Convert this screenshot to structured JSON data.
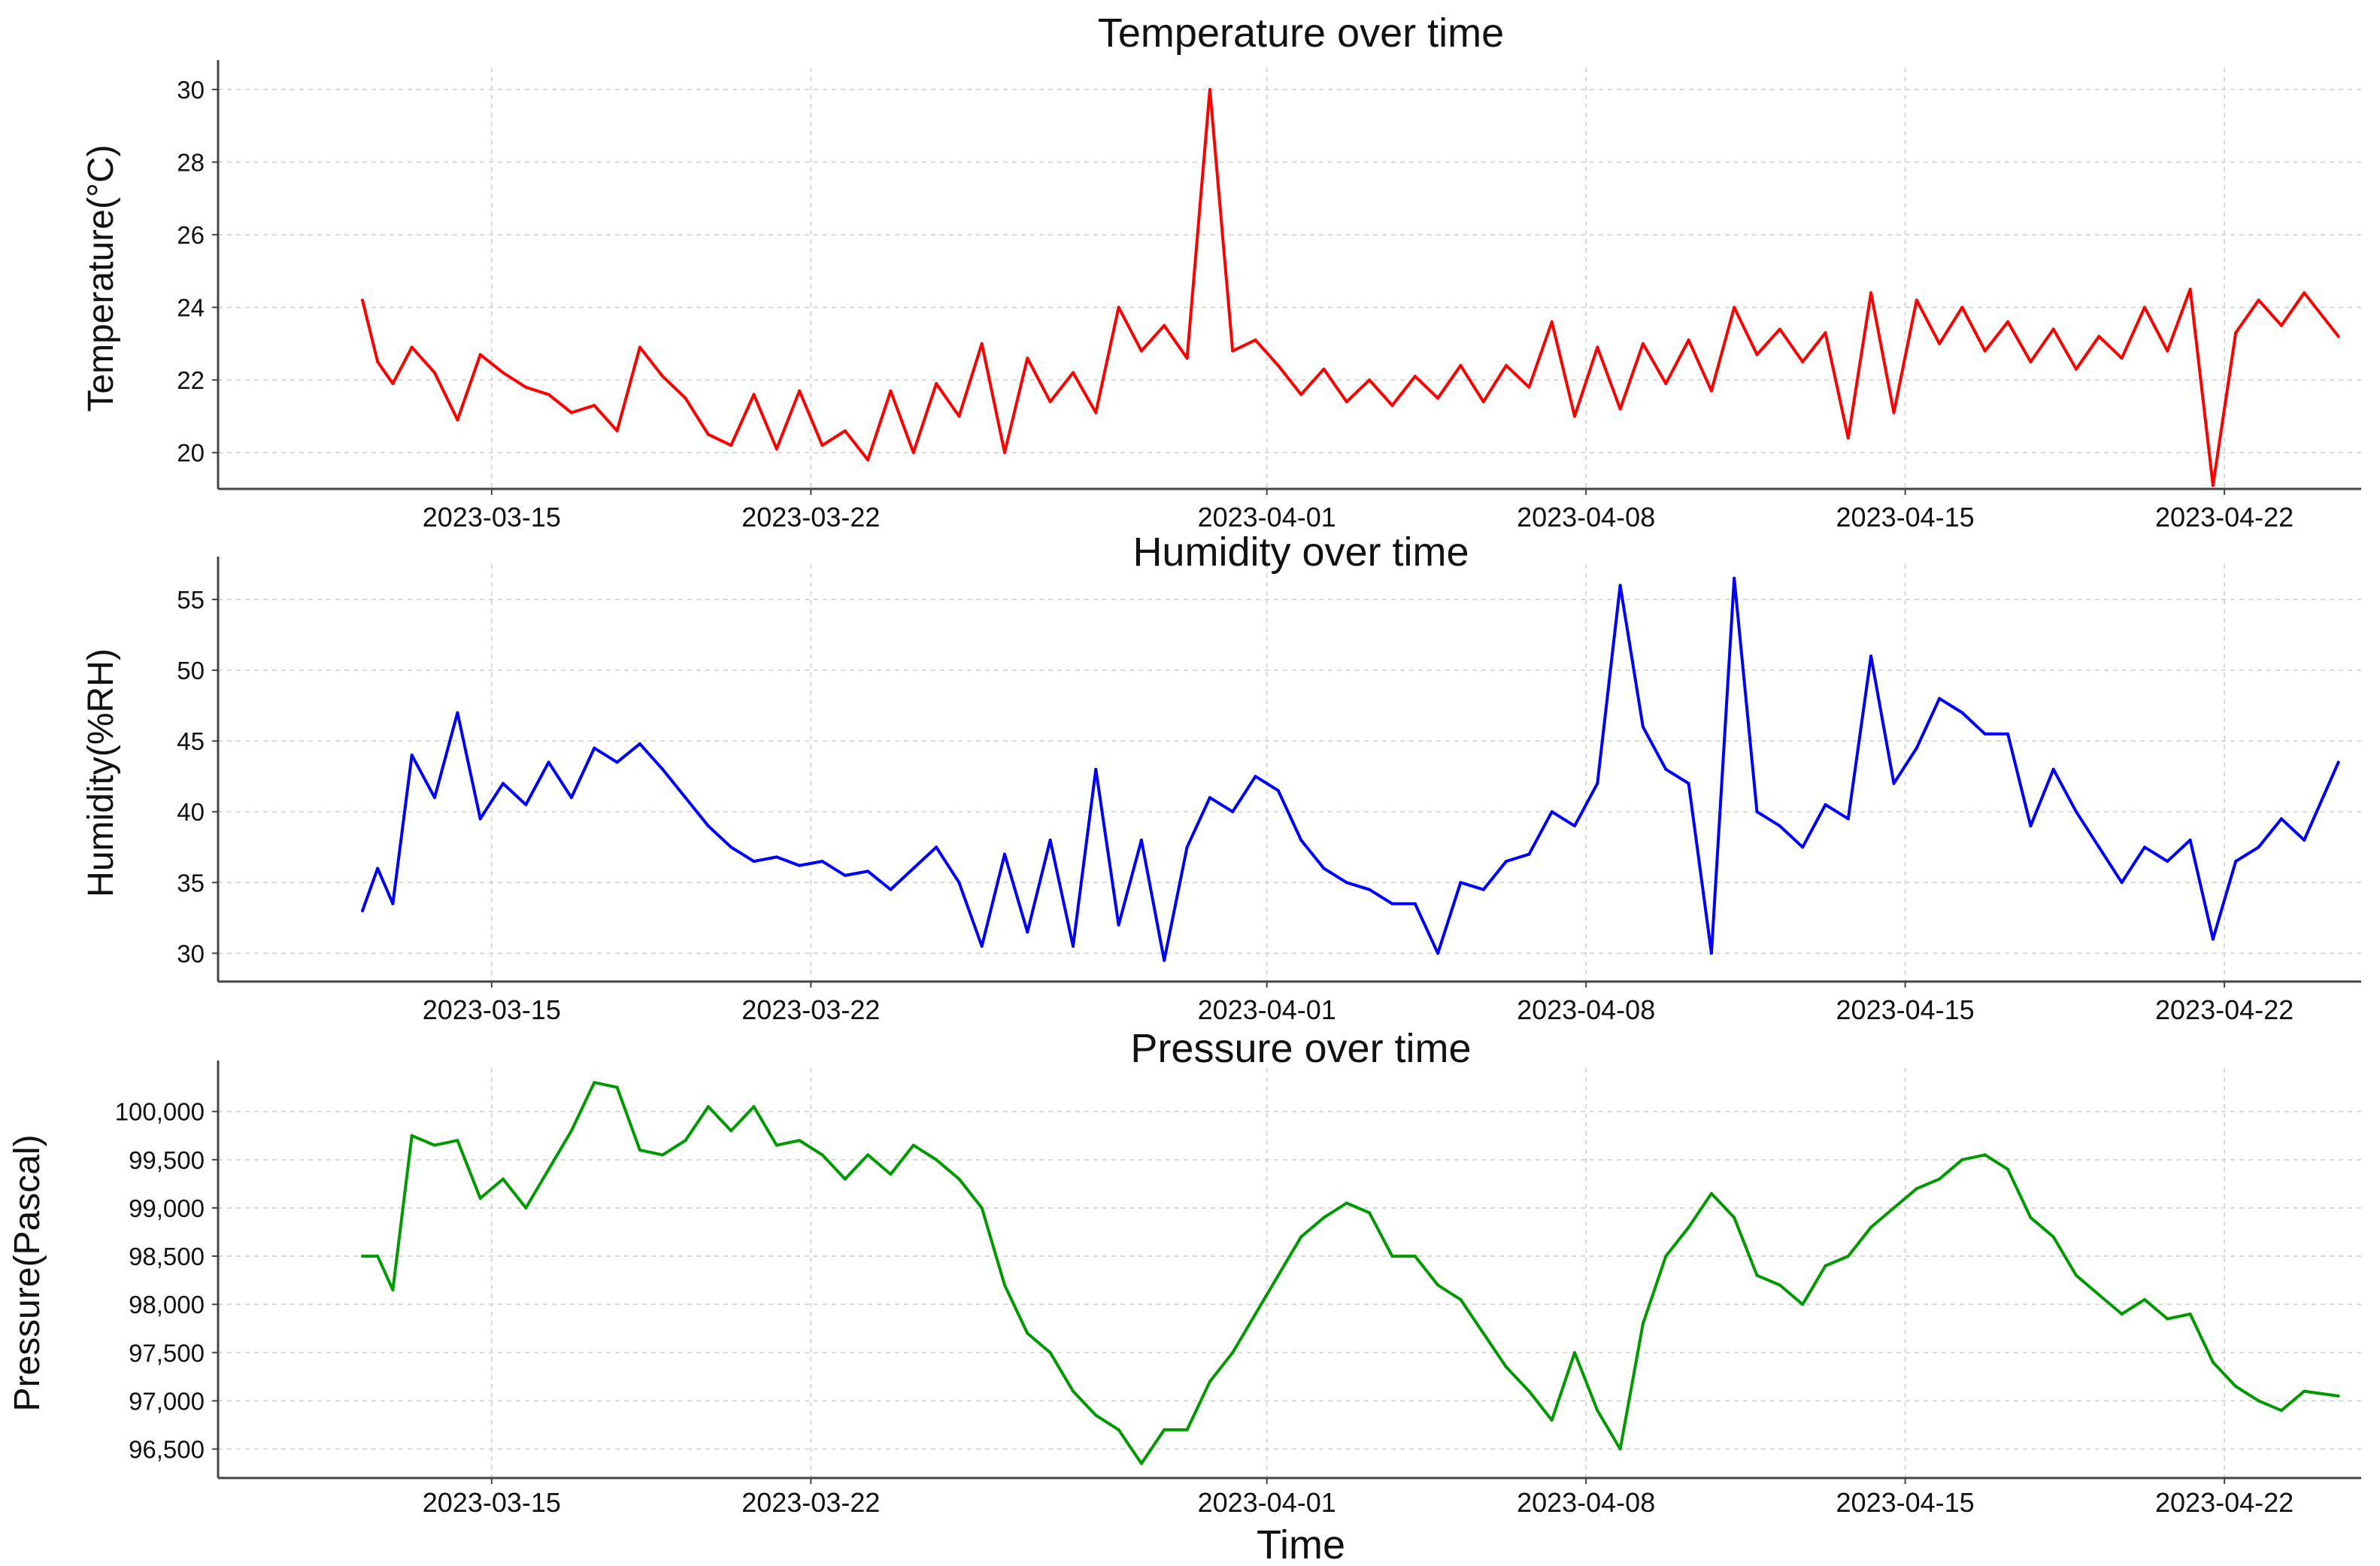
{
  "chart_data": [
    {
      "type": "line",
      "title": "Temperature over time",
      "ylabel": "Temperature(°C)",
      "xlabel": "",
      "xlim": [
        "2023-03-09",
        "2023-04-25"
      ],
      "ylim": [
        19,
        30.6
      ],
      "yticks": [
        20,
        22,
        24,
        26,
        28,
        30
      ],
      "ytick_labels": [
        "20",
        "22",
        "24",
        "26",
        "28",
        "30"
      ],
      "xticks": [
        "2023-03-15",
        "2023-03-22",
        "2023-04-01",
        "2023-04-08",
        "2023-04-15",
        "2023-04-22"
      ],
      "grid": true,
      "color": "#ff0000",
      "series": [
        {
          "x": [
            "2023-03-12",
            "2023-03-12",
            "2023-03-12",
            "2023-03-13",
            "2023-03-13",
            "2023-03-14",
            "2023-03-14",
            "2023-03-15",
            "2023-03-15",
            "2023-03-16",
            "2023-03-16",
            "2023-03-17",
            "2023-03-17",
            "2023-03-18",
            "2023-03-18",
            "2023-03-19",
            "2023-03-19",
            "2023-03-20",
            "2023-03-20",
            "2023-03-21",
            "2023-03-21",
            "2023-03-22",
            "2023-03-22",
            "2023-03-23",
            "2023-03-23",
            "2023-03-24",
            "2023-03-24",
            "2023-03-25",
            "2023-03-25",
            "2023-03-26",
            "2023-03-26",
            "2023-03-27",
            "2023-03-27",
            "2023-03-28",
            "2023-03-28",
            "2023-03-29",
            "2023-03-29",
            "2023-03-30",
            "2023-03-30",
            "2023-03-31",
            "2023-03-31",
            "2023-04-01",
            "2023-04-01",
            "2023-04-02",
            "2023-04-02",
            "2023-04-03",
            "2023-04-03",
            "2023-04-04",
            "2023-04-04",
            "2023-04-05",
            "2023-04-05",
            "2023-04-06",
            "2023-04-06",
            "2023-04-07",
            "2023-04-07",
            "2023-04-08",
            "2023-04-08",
            "2023-04-09",
            "2023-04-09",
            "2023-04-10",
            "2023-04-10",
            "2023-04-11",
            "2023-04-11",
            "2023-04-12",
            "2023-04-12",
            "2023-04-13",
            "2023-04-13",
            "2023-04-14",
            "2023-04-14",
            "2023-04-15",
            "2023-04-15",
            "2023-04-16",
            "2023-04-16",
            "2023-04-17",
            "2023-04-17",
            "2023-04-18",
            "2023-04-18",
            "2023-04-19",
            "2023-04-19",
            "2023-04-20",
            "2023-04-20",
            "2023-04-21",
            "2023-04-21",
            "2023-04-22",
            "2023-04-22",
            "2023-04-23",
            "2023-04-23",
            "2023-04-24"
          ],
          "y": [
            24.2,
            22.5,
            21.9,
            22.9,
            22.2,
            20.9,
            22.7,
            22.2,
            21.8,
            21.6,
            21.1,
            21.3,
            20.6,
            22.9,
            22.1,
            21.5,
            20.5,
            20.2,
            21.6,
            20.1,
            21.7,
            20.2,
            20.6,
            19.8,
            21.7,
            20.0,
            21.9,
            21.0,
            23.0,
            20.0,
            22.6,
            21.4,
            22.2,
            21.1,
            24.0,
            22.8,
            23.5,
            22.6,
            30.0,
            22.8,
            23.1,
            22.4,
            21.6,
            22.3,
            21.4,
            22.0,
            21.3,
            22.1,
            21.5,
            22.4,
            21.4,
            22.4,
            21.8,
            23.6,
            21.0,
            22.9,
            21.2,
            23.0,
            21.9,
            23.1,
            21.7,
            24.0,
            22.7,
            23.4,
            22.5,
            23.3,
            20.4,
            24.4,
            21.1,
            24.2,
            23.0,
            24.0,
            22.8,
            23.6,
            22.5,
            23.4,
            22.3,
            23.2,
            22.6,
            24.0,
            22.8,
            24.5,
            19.1,
            23.3,
            24.2,
            23.5,
            24.4,
            23.2
          ],
          "color": "#ff0000"
        }
      ]
    },
    {
      "type": "line",
      "title": "Humidity over time",
      "ylabel": "Humidity(%RH)",
      "xlabel": "",
      "xlim": [
        "2023-03-09",
        "2023-04-25"
      ],
      "ylim": [
        28,
        57.5
      ],
      "yticks": [
        30,
        35,
        40,
        45,
        50,
        55
      ],
      "ytick_labels": [
        "30",
        "35",
        "40",
        "45",
        "50",
        "55"
      ],
      "xticks": [
        "2023-03-15",
        "2023-03-22",
        "2023-04-01",
        "2023-04-08",
        "2023-04-15",
        "2023-04-22"
      ],
      "grid": true,
      "color": "#0000ff",
      "series": [
        {
          "x": [
            "2023-03-12",
            "2023-03-12",
            "2023-03-12",
            "2023-03-13",
            "2023-03-13",
            "2023-03-14",
            "2023-03-14",
            "2023-03-15",
            "2023-03-15",
            "2023-03-16",
            "2023-03-16",
            "2023-03-17",
            "2023-03-17",
            "2023-03-18",
            "2023-03-18",
            "2023-03-19",
            "2023-03-19",
            "2023-03-20",
            "2023-03-20",
            "2023-03-21",
            "2023-03-21",
            "2023-03-22",
            "2023-03-22",
            "2023-03-23",
            "2023-03-23",
            "2023-03-24",
            "2023-03-24",
            "2023-03-25",
            "2023-03-25",
            "2023-03-26",
            "2023-03-26",
            "2023-03-27",
            "2023-03-27",
            "2023-03-28",
            "2023-03-28",
            "2023-03-29",
            "2023-03-29",
            "2023-03-30",
            "2023-03-30",
            "2023-03-31",
            "2023-03-31",
            "2023-04-01",
            "2023-04-01",
            "2023-04-02",
            "2023-04-02",
            "2023-04-03",
            "2023-04-03",
            "2023-04-04",
            "2023-04-04",
            "2023-04-05",
            "2023-04-05",
            "2023-04-06",
            "2023-04-06",
            "2023-04-07",
            "2023-04-07",
            "2023-04-08",
            "2023-04-08",
            "2023-04-09",
            "2023-04-09",
            "2023-04-10",
            "2023-04-10",
            "2023-04-11",
            "2023-04-11",
            "2023-04-12",
            "2023-04-12",
            "2023-04-13",
            "2023-04-13",
            "2023-04-14",
            "2023-04-14",
            "2023-04-15",
            "2023-04-15",
            "2023-04-16",
            "2023-04-16",
            "2023-04-17",
            "2023-04-17",
            "2023-04-18",
            "2023-04-18",
            "2023-04-19",
            "2023-04-19",
            "2023-04-20",
            "2023-04-20",
            "2023-04-21",
            "2023-04-21",
            "2023-04-22",
            "2023-04-22",
            "2023-04-23",
            "2023-04-23",
            "2023-04-24"
          ],
          "y": [
            33.0,
            36.0,
            33.5,
            44.0,
            41.0,
            47.0,
            39.5,
            42.0,
            40.5,
            43.5,
            41.0,
            44.5,
            43.5,
            44.8,
            43.0,
            41.0,
            39.0,
            37.5,
            36.5,
            36.8,
            36.2,
            36.5,
            35.5,
            35.8,
            34.5,
            36.0,
            37.5,
            35.0,
            30.5,
            37.0,
            31.5,
            38.0,
            30.5,
            43.0,
            32.0,
            38.0,
            29.5,
            37.5,
            41.0,
            40.0,
            42.5,
            41.5,
            38.0,
            36.0,
            35.0,
            34.5,
            33.5,
            33.5,
            30.0,
            35.0,
            34.5,
            36.5,
            37.0,
            40.0,
            39.0,
            42.0,
            56.0,
            46.0,
            43.0,
            42.0,
            30.0,
            56.5,
            40.0,
            39.0,
            37.5,
            40.5,
            39.5,
            51.0,
            42.0,
            44.5,
            48.0,
            47.0,
            45.5,
            45.5,
            39.0,
            43.0,
            40.0,
            37.5,
            35.0,
            37.5,
            36.5,
            38.0,
            31.0,
            36.5,
            37.5,
            39.5,
            38.0,
            43.5
          ],
          "color": "#0000ff"
        }
      ]
    },
    {
      "type": "line",
      "title": "Pressure over time",
      "ylabel": "Pressure(Pascal)",
      "xlabel": "Time",
      "xlim": [
        "2023-03-09",
        "2023-04-25"
      ],
      "ylim": [
        96200,
        100450
      ],
      "yticks": [
        96500,
        97000,
        97500,
        98000,
        98500,
        99000,
        99500,
        100000
      ],
      "ytick_labels": [
        "96,500",
        "97,000",
        "97,500",
        "98,000",
        "98,500",
        "99,000",
        "99,500",
        "100,000"
      ],
      "xticks": [
        "2023-03-15",
        "2023-03-22",
        "2023-04-01",
        "2023-04-08",
        "2023-04-15",
        "2023-04-22"
      ],
      "grid": true,
      "color": "#009900",
      "series": [
        {
          "x": [
            "2023-03-12",
            "2023-03-12",
            "2023-03-12",
            "2023-03-13",
            "2023-03-13",
            "2023-03-14",
            "2023-03-14",
            "2023-03-15",
            "2023-03-15",
            "2023-03-16",
            "2023-03-16",
            "2023-03-17",
            "2023-03-17",
            "2023-03-18",
            "2023-03-18",
            "2023-03-19",
            "2023-03-19",
            "2023-03-20",
            "2023-03-20",
            "2023-03-21",
            "2023-03-21",
            "2023-03-22",
            "2023-03-22",
            "2023-03-23",
            "2023-03-23",
            "2023-03-24",
            "2023-03-24",
            "2023-03-25",
            "2023-03-25",
            "2023-03-26",
            "2023-03-26",
            "2023-03-27",
            "2023-03-27",
            "2023-03-28",
            "2023-03-28",
            "2023-03-29",
            "2023-03-29",
            "2023-03-30",
            "2023-03-30",
            "2023-03-31",
            "2023-03-31",
            "2023-04-01",
            "2023-04-01",
            "2023-04-02",
            "2023-04-02",
            "2023-04-03",
            "2023-04-03",
            "2023-04-04",
            "2023-04-04",
            "2023-04-05",
            "2023-04-05",
            "2023-04-06",
            "2023-04-06",
            "2023-04-07",
            "2023-04-07",
            "2023-04-08",
            "2023-04-08",
            "2023-04-09",
            "2023-04-09",
            "2023-04-10",
            "2023-04-10",
            "2023-04-11",
            "2023-04-11",
            "2023-04-12",
            "2023-04-12",
            "2023-04-13",
            "2023-04-13",
            "2023-04-14",
            "2023-04-14",
            "2023-04-15",
            "2023-04-15",
            "2023-04-16",
            "2023-04-16",
            "2023-04-17",
            "2023-04-17",
            "2023-04-18",
            "2023-04-18",
            "2023-04-19",
            "2023-04-19",
            "2023-04-20",
            "2023-04-20",
            "2023-04-21",
            "2023-04-21",
            "2023-04-22",
            "2023-04-22",
            "2023-04-23",
            "2023-04-23",
            "2023-04-24"
          ],
          "y": [
            98500,
            98500,
            98150,
            99750,
            99650,
            99700,
            99100,
            99300,
            99000,
            99400,
            99800,
            100300,
            100250,
            99600,
            99550,
            99700,
            100050,
            99800,
            100050,
            99650,
            99700,
            99550,
            99300,
            99550,
            99350,
            99650,
            99500,
            99300,
            99000,
            98200,
            97700,
            97500,
            97100,
            96850,
            96700,
            96350,
            96700,
            96700,
            97200,
            97500,
            97900,
            98300,
            98700,
            98900,
            99050,
            98950,
            98500,
            98500,
            98200,
            98050,
            97700,
            97350,
            97100,
            96800,
            97500,
            96900,
            96500,
            97800,
            98500,
            98800,
            99150,
            98900,
            98300,
            98200,
            98000,
            98400,
            98500,
            98800,
            99000,
            99200,
            99300,
            99500,
            99550,
            99400,
            98900,
            98700,
            98300,
            98100,
            97900,
            98050,
            97850,
            97900,
            97400,
            97150,
            97000,
            96900,
            97100,
            97050
          ],
          "color": "#009900"
        }
      ]
    }
  ]
}
